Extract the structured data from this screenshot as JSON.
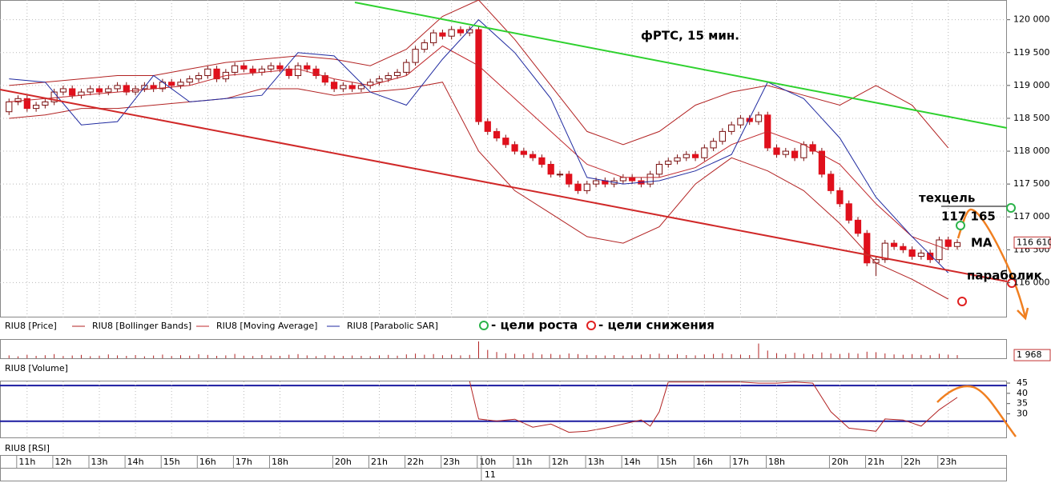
{
  "chart_data": [
    {
      "type": "candlestick",
      "title": "фРТС, 15 мин.",
      "xlim": [
        -1,
        110.5
      ],
      "ylim": [
        115470,
        120300
      ],
      "yticks": [
        {
          "value": 116000,
          "label": "116 000"
        },
        {
          "value": 116500,
          "label": "116 500"
        },
        {
          "value": 117000,
          "label": "117 000"
        },
        {
          "value": 117500,
          "label": "117 500"
        },
        {
          "value": 118000,
          "label": "118 000"
        },
        {
          "value": 118500,
          "label": "118 500"
        },
        {
          "value": 119000,
          "label": "119 000"
        },
        {
          "value": 119500,
          "label": "119 500"
        },
        {
          "value": 120000,
          "label": "120 000"
        }
      ],
      "xticks": [
        {
          "value": 2,
          "label": "11h"
        },
        {
          "value": 6,
          "label": "12h"
        },
        {
          "value": 10,
          "label": "13h"
        },
        {
          "value": 14,
          "label": "14h"
        },
        {
          "value": 18,
          "label": "15h"
        },
        {
          "value": 22,
          "label": "16h"
        },
        {
          "value": 26,
          "label": "17h"
        },
        {
          "value": 30,
          "label": "18h"
        },
        {
          "value": 37,
          "label": "20h"
        },
        {
          "value": 41,
          "label": "21h"
        },
        {
          "value": 45,
          "label": "22h"
        },
        {
          "value": 49,
          "label": "23h"
        },
        {
          "value": 53,
          "label": "10h"
        },
        {
          "value": 57,
          "label": "11h"
        },
        {
          "value": 61,
          "label": "12h"
        },
        {
          "value": 65,
          "label": "13h"
        },
        {
          "value": 69,
          "label": "14h"
        },
        {
          "value": 73,
          "label": "15h"
        },
        {
          "value": 77,
          "label": "16h"
        },
        {
          "value": 81,
          "label": "17h"
        },
        {
          "value": 85,
          "label": "18h"
        },
        {
          "value": 92,
          "label": "20h"
        },
        {
          "value": 96,
          "label": "21h"
        },
        {
          "value": 100,
          "label": "22h"
        },
        {
          "value": 104,
          "label": "23h"
        }
      ],
      "date_ticks": [
        {
          "value": 52.3,
          "label": "11"
        }
      ],
      "grid": true,
      "last_value": {
        "value": 116610,
        "label": "116 610"
      },
      "series": [
        {
          "name": "RIU8 [Price]",
          "type": "candlestick",
          "up_color": "#ffffff",
          "down_color": "#e0101c",
          "edge_color": "#7a1010",
          "open": [
            118600,
            118750,
            118800,
            118650,
            118700,
            118750,
            118900,
            118950,
            118850,
            118900,
            118950,
            118900,
            118950,
            119000,
            118900,
            118950,
            119000,
            118950,
            119050,
            119000,
            119050,
            119100,
            119150,
            119250,
            119100,
            119200,
            119300,
            119250,
            119200,
            119250,
            119300,
            119250,
            119150,
            119300,
            119250,
            119150,
            119050,
            118950,
            119000,
            118950,
            119000,
            119050,
            119100,
            119150,
            119200,
            119350,
            119550,
            119650,
            119800,
            119750,
            119850,
            119800,
            119850,
            118450,
            118300,
            118200,
            118100,
            118000,
            117950,
            117900,
            117800,
            117650,
            117650,
            117500,
            117400,
            117500,
            117550,
            117500,
            117550,
            117600,
            117550,
            117500,
            117650,
            117800,
            117850,
            117900,
            117950,
            117900,
            118050,
            118150,
            118300,
            118400,
            118500,
            118450,
            118550,
            118050,
            117950,
            118000,
            117900,
            118100,
            118000,
            117650,
            117400,
            117200,
            116950,
            116750,
            116300,
            116350,
            116600,
            116550,
            116500,
            116400,
            116450,
            116350,
            116650,
            116550
          ],
          "high": [
            118800,
            118850,
            118850,
            118750,
            118800,
            118950,
            119000,
            119000,
            118950,
            119000,
            119000,
            119000,
            119050,
            119050,
            119000,
            119050,
            119050,
            119100,
            119100,
            119100,
            119150,
            119200,
            119300,
            119300,
            119250,
            119350,
            119350,
            119300,
            119300,
            119350,
            119350,
            119300,
            119350,
            119350,
            119300,
            119200,
            119100,
            119050,
            119050,
            119050,
            119100,
            119150,
            119200,
            119250,
            119400,
            119600,
            119700,
            119850,
            119850,
            119900,
            119900,
            119900,
            119900,
            118500,
            118350,
            118250,
            118150,
            118050,
            118000,
            117950,
            117850,
            117700,
            117700,
            117550,
            117550,
            117600,
            117600,
            117600,
            117650,
            117650,
            117600,
            117700,
            117850,
            117900,
            117950,
            118000,
            118000,
            118100,
            118200,
            118350,
            118450,
            118550,
            118550,
            118600,
            118600,
            118100,
            118050,
            118050,
            118150,
            118150,
            118050,
            117700,
            117450,
            117250,
            117000,
            116800,
            116400,
            116650,
            116650,
            116600,
            116550,
            116500,
            116500,
            116700,
            116700,
            116660
          ],
          "low": [
            118550,
            118700,
            118600,
            118600,
            118650,
            118700,
            118850,
            118800,
            118800,
            118850,
            118850,
            118850,
            118900,
            118850,
            118850,
            118900,
            118900,
            118900,
            118950,
            118950,
            119000,
            119050,
            119100,
            119050,
            119050,
            119150,
            119200,
            119150,
            119150,
            119200,
            119200,
            119100,
            119100,
            119200,
            119100,
            119000,
            118900,
            118900,
            118900,
            118900,
            118950,
            119000,
            119050,
            119100,
            119150,
            119300,
            119500,
            119600,
            119700,
            119700,
            119750,
            119750,
            118400,
            118250,
            118150,
            118050,
            117950,
            117900,
            117850,
            117750,
            117600,
            117600,
            117450,
            117350,
            117350,
            117450,
            117450,
            117450,
            117500,
            117500,
            117450,
            117450,
            117600,
            117750,
            117800,
            117850,
            117850,
            117850,
            118000,
            118100,
            118250,
            118350,
            118400,
            118400,
            118000,
            117900,
            117900,
            117850,
            117850,
            117950,
            117600,
            117350,
            117150,
            116900,
            116700,
            116250,
            116100,
            116300,
            116500,
            116450,
            116350,
            116350,
            116300,
            116300,
            116500,
            116500
          ],
          "close": [
            118750,
            118800,
            118650,
            118700,
            118750,
            118900,
            118950,
            118850,
            118900,
            118950,
            118900,
            118950,
            119000,
            118900,
            118950,
            119000,
            118950,
            119050,
            119000,
            119050,
            119100,
            119150,
            119250,
            119100,
            119200,
            119300,
            119250,
            119200,
            119250,
            119300,
            119250,
            119150,
            119300,
            119250,
            119150,
            119050,
            118950,
            119000,
            118950,
            119000,
            119050,
            119100,
            119150,
            119200,
            119350,
            119550,
            119650,
            119800,
            119750,
            119850,
            119800,
            119850,
            118450,
            118300,
            118200,
            118100,
            118000,
            117950,
            117900,
            117800,
            117650,
            117650,
            117500,
            117400,
            117500,
            117550,
            117500,
            117550,
            117600,
            117550,
            117500,
            117650,
            117800,
            117850,
            117900,
            117950,
            117900,
            118050,
            118150,
            118300,
            118400,
            118500,
            118450,
            118550,
            118050,
            117950,
            118000,
            117900,
            118100,
            118000,
            117650,
            117400,
            117200,
            116950,
            116750,
            116300,
            116350,
            116600,
            116550,
            116500,
            116400,
            116450,
            116350,
            116650,
            116550,
            116610
          ]
        },
        {
          "name": "RIU8 [Bollinger Bands]",
          "type": "band",
          "color": "#b22222",
          "x": [
            0,
            4,
            8,
            12,
            16,
            20,
            24,
            28,
            32,
            36,
            40,
            44,
            48,
            52,
            56,
            60,
            64,
            68,
            72,
            76,
            80,
            84,
            88,
            92,
            96,
            100,
            104
          ],
          "upper": [
            119000,
            119050,
            119100,
            119150,
            119150,
            119250,
            119350,
            119400,
            119450,
            119400,
            119300,
            119550,
            120050,
            120300,
            119700,
            119000,
            118300,
            118100,
            118300,
            118700,
            118900,
            119000,
            118850,
            118700,
            119000,
            118700,
            118050
          ],
          "lower": [
            118500,
            118550,
            118650,
            118650,
            118700,
            118750,
            118800,
            118950,
            118950,
            118850,
            118900,
            118950,
            119050,
            118000,
            117400,
            117050,
            116700,
            116600,
            116850,
            117500,
            117900,
            117700,
            117400,
            116900,
            116300,
            116050,
            115750
          ]
        },
        {
          "name": "RIU8 [Moving Average]",
          "type": "line",
          "color": "#c0282c",
          "x": [
            0,
            4,
            8,
            12,
            16,
            20,
            24,
            28,
            32,
            36,
            40,
            44,
            48,
            52,
            56,
            60,
            64,
            68,
            72,
            76,
            80,
            84,
            88,
            92,
            96,
            100,
            104
          ],
          "values": [
            118750,
            118800,
            118850,
            118900,
            118950,
            119000,
            119150,
            119200,
            119250,
            119100,
            119000,
            119150,
            119600,
            119300,
            118800,
            118300,
            117800,
            117600,
            117600,
            117750,
            118100,
            118300,
            118100,
            117800,
            117200,
            116700,
            116500
          ]
        },
        {
          "name": "RIU8 [Parabolic SAR]",
          "type": "line",
          "color": "#1f2aa0",
          "x": [
            0,
            4,
            8,
            12,
            16,
            20,
            24,
            28,
            32,
            36,
            40,
            44,
            48,
            52,
            56,
            60,
            64,
            68,
            72,
            76,
            80,
            84,
            88,
            92,
            96,
            100,
            104
          ],
          "values": [
            119100,
            119050,
            118400,
            118450,
            119150,
            118750,
            118800,
            118850,
            119500,
            119450,
            118900,
            118700,
            119400,
            120000,
            119500,
            118800,
            117600,
            117500,
            117550,
            117700,
            117950,
            119050,
            118800,
            118200,
            117300,
            116700,
            116150
          ]
        }
      ],
      "annotations": [
        {
          "text": "техцель"
        },
        {
          "text": "117 165"
        },
        {
          "text": "МА"
        },
        {
          "text": "параболик"
        }
      ],
      "targets_legend": [
        {
          "text": "- цели роста",
          "color": "#2bb34a"
        },
        {
          "text": "- цели снижения",
          "color": "#e02020"
        }
      ]
    },
    {
      "type": "bar",
      "xlim": [
        -1,
        110.5
      ],
      "ylim": [
        0,
        11000
      ],
      "series": [
        {
          "name": "RIU8 [Volume]",
          "color": "#b22222",
          "values": [
            1800,
            1200,
            2200,
            1500,
            1900,
            2600,
            1400,
            1700,
            2100,
            1300,
            1600,
            2400,
            1800,
            1500,
            2000,
            1200,
            1700,
            2300,
            1400,
            1900,
            1600,
            2500,
            2100,
            1500,
            1800,
            2700,
            1600,
            1400,
            2000,
            1700,
            1500,
            2200,
            2600,
            1800,
            1300,
            1900,
            1600,
            1400,
            1700,
            1500,
            1300,
            1800,
            2100,
            1600,
            2400,
            2900,
            2200,
            2600,
            1900,
            2300,
            1800,
            2100,
            10500,
            5200,
            3900,
            3100,
            2800,
            2500,
            3300,
            2400,
            2700,
            2200,
            3000,
            2600,
            2100,
            1900,
            1700,
            2000,
            1600,
            1800,
            2300,
            2500,
            2900,
            2200,
            2600,
            2000,
            1800,
            2400,
            2700,
            3100,
            2500,
            2300,
            2000,
            9200,
            4800,
            3200,
            2600,
            3400,
            2800,
            2500,
            3600,
            3000,
            2700,
            3300,
            2900,
            4100,
            3800,
            3000,
            2400,
            2200,
            2600,
            2100,
            1900,
            2800,
            2300,
            1968
          ]
        }
      ],
      "last_value": {
        "value": 1968,
        "label": "1 968"
      }
    },
    {
      "type": "line",
      "xlim": [
        -1,
        110.5
      ],
      "ylim": [
        18.1,
        45.8
      ],
      "yticks": [
        45,
        40,
        35,
        30
      ],
      "levels": [
        43.8,
        26.4
      ],
      "levels_color": "#1a1aa0",
      "series": [
        {
          "name": "RIU8 [RSI]",
          "color": "#b22222",
          "x": [
            51,
            52,
            54,
            56,
            58,
            60,
            62,
            64,
            66,
            68,
            70,
            71,
            72,
            73,
            75,
            77,
            79,
            81,
            83,
            85,
            87,
            89,
            91,
            93,
            95,
            96,
            97,
            99,
            101,
            103,
            105
          ],
          "values": [
            46,
            27.5,
            26.5,
            27.4,
            23.5,
            25,
            21,
            21.5,
            23,
            25,
            27,
            24,
            31,
            45.5,
            45.5,
            45.5,
            45.5,
            45.5,
            45,
            45,
            45.5,
            45,
            31,
            23,
            22,
            21.5,
            27.5,
            27,
            24,
            32,
            38
          ]
        }
      ]
    }
  ]
}
